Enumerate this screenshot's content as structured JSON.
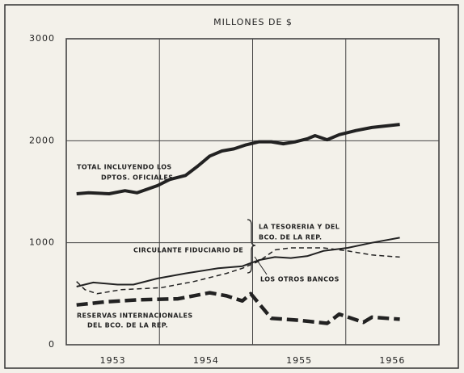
{
  "chart_data": {
    "type": "line",
    "title": "MILLONES DE $",
    "xlim": [
      1953,
      1957
    ],
    "xgrid": [
      1953,
      1954,
      1955,
      1956,
      1957
    ],
    "xticks": [
      {
        "value": 1953.5,
        "label": "1953"
      },
      {
        "value": 1954.5,
        "label": "1954"
      },
      {
        "value": 1955.5,
        "label": "1955"
      },
      {
        "value": 1956.5,
        "label": "1956"
      }
    ],
    "ylim": [
      0,
      3000
    ],
    "yticks": [
      0,
      1000,
      2000,
      3000
    ],
    "grid": true,
    "annotations": [
      "TOTAL INCLUYENDO LOS",
      "DPTOS. OFICIALES",
      "CIRCULANTE FIDUCIARIO DE",
      "LA TESORERIA Y DEL",
      "BCO. DE LA REP.",
      "LOS OTROS BANCOS",
      "RESERVAS INTERNACIONALES",
      "DEL BCO. DE LA REP."
    ],
    "series": [
      {
        "color": "#222",
        "style": "solid",
        "width": 4,
        "x": [
          1953.11,
          1953.24,
          1953.46,
          1953.63,
          1953.76,
          1953.98,
          1954.11,
          1954.28,
          1954.41,
          1954.54,
          1954.67,
          1954.8,
          1954.93,
          1955.07,
          1955.2,
          1955.33,
          1955.46,
          1955.59,
          1955.67,
          1955.8,
          1955.93,
          1956.11,
          1956.28,
          1956.58
        ],
        "values": [
          1480,
          1490,
          1480,
          1510,
          1490,
          1560,
          1620,
          1660,
          1750,
          1850,
          1900,
          1920,
          1960,
          1990,
          1990,
          1970,
          1990,
          2020,
          2050,
          2010,
          2060,
          2100,
          2130,
          2160
        ]
      },
      {
        "color": "#222",
        "style": "solid",
        "width": 2,
        "x": [
          1953.11,
          1953.29,
          1953.55,
          1953.72,
          1953.98,
          1954.28,
          1954.63,
          1954.89,
          1955.07,
          1955.24,
          1955.41,
          1955.59,
          1955.76,
          1956.02,
          1956.28,
          1956.58
        ],
        "values": [
          570,
          610,
          590,
          590,
          650,
          700,
          750,
          770,
          830,
          860,
          850,
          870,
          920,
          950,
          1000,
          1050
        ]
      },
      {
        "color": "#222",
        "style": "dashed",
        "width": 1.5,
        "x": [
          1953.11,
          1953.2,
          1953.33,
          1953.59,
          1954.02,
          1954.37,
          1954.72,
          1954.89,
          1955.07,
          1955.24,
          1955.41,
          1955.76,
          1956.02,
          1956.28,
          1956.58
        ],
        "values": [
          620,
          540,
          500,
          540,
          560,
          620,
          700,
          750,
          820,
          930,
          950,
          950,
          920,
          880,
          860
        ]
      },
      {
        "color": "#222",
        "style": "dashed",
        "width": 4.5,
        "x": [
          1953.11,
          1953.42,
          1953.76,
          1954.2,
          1954.54,
          1954.72,
          1954.89,
          1954.98,
          1955.2,
          1955.5,
          1955.8,
          1955.93,
          1956.19,
          1956.28,
          1956.58
        ],
        "values": [
          390,
          420,
          440,
          450,
          510,
          480,
          430,
          500,
          260,
          240,
          210,
          300,
          220,
          270,
          250
        ]
      }
    ]
  }
}
